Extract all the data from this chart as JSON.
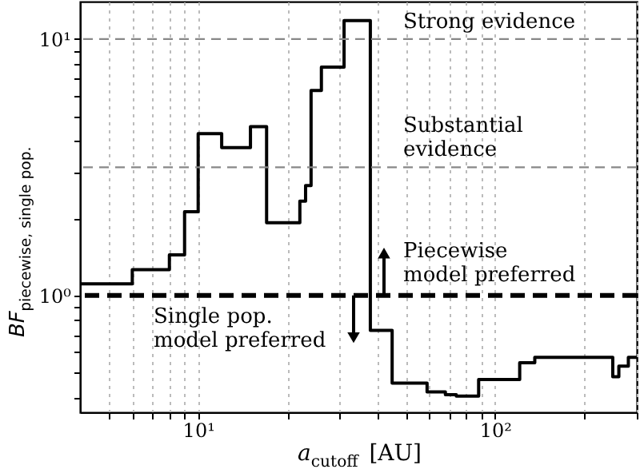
{
  "chart_data": {
    "type": "step",
    "xlabel": "a$_{cutoff}$ [AU]",
    "ylabel": "BF$_{piecewise, single pop.}$",
    "x": [
      4,
      6,
      8,
      9,
      10,
      12,
      15,
      17,
      22,
      23,
      24,
      26,
      31,
      38,
      45,
      59,
      68,
      74,
      88,
      121,
      136,
      249,
      261,
      281,
      300
    ],
    "series": [
      {
        "color": "#000000",
        "values": [
          1.11,
          1.26,
          1.44,
          2.12,
          4.28,
          3.77,
          4.55,
          1.92,
          2.33,
          2.68,
          6.3,
          7.77,
          11.8,
          0.73,
          0.455,
          0.42,
          0.41,
          0.405,
          0.47,
          0.546,
          0.573,
          0.482,
          0.53,
          0.573,
          0.573
        ]
      }
    ],
    "log": "xy",
    "xlim": [
      4,
      300
    ],
    "ylim": [
      0.35,
      14
    ],
    "xticks": [
      {
        "value": 5,
        "label": null
      },
      {
        "value": 6,
        "label": null
      },
      {
        "value": 7,
        "label": null
      },
      {
        "value": 8,
        "label": null
      },
      {
        "value": 9,
        "label": null
      },
      {
        "value": 10,
        "label": "10¹"
      },
      {
        "value": 20,
        "label": null
      },
      {
        "value": 30,
        "label": null
      },
      {
        "value": 40,
        "label": null
      },
      {
        "value": 50,
        "label": null
      },
      {
        "value": 60,
        "label": null
      },
      {
        "value": 70,
        "label": null
      },
      {
        "value": 80,
        "label": null
      },
      {
        "value": 90,
        "label": null
      },
      {
        "value": 100,
        "label": "10²"
      },
      {
        "value": 200,
        "label": null
      },
      {
        "value": 300,
        "label": null
      }
    ],
    "yticks": [
      {
        "value": 0.4,
        "label": null
      },
      {
        "value": 0.5,
        "label": null
      },
      {
        "value": 0.6,
        "label": null
      },
      {
        "value": 0.7,
        "label": null
      },
      {
        "value": 0.8,
        "label": null
      },
      {
        "value": 0.9,
        "label": null
      },
      {
        "value": 1,
        "label": "10⁰"
      },
      {
        "value": 2,
        "label": null
      },
      {
        "value": 3,
        "label": null
      },
      {
        "value": 4,
        "label": null
      },
      {
        "value": 5,
        "label": null
      },
      {
        "value": 6,
        "label": null
      },
      {
        "value": 7,
        "label": null
      },
      {
        "value": 8,
        "label": null
      },
      {
        "value": 9,
        "label": null
      },
      {
        "value": 10,
        "label": "10¹"
      }
    ],
    "grid": "x",
    "line_style": "solid",
    "marker": "none",
    "ref_lines": [
      {
        "axis": "y",
        "value": 10,
        "label": "Strong evidence",
        "color": "#888888",
        "line_style": "dashed"
      },
      {
        "axis": "y",
        "value": 3.16,
        "label": "Substantial\nevidence",
        "color": "#888888",
        "line_style": "dashed"
      },
      {
        "axis": "y",
        "value": 1,
        "color": "#000000",
        "line_style": "dashed"
      }
    ],
    "annotations": [
      "Piecewise\nmodel preferred",
      "Single pop.\nmodel preferred"
    ]
  }
}
